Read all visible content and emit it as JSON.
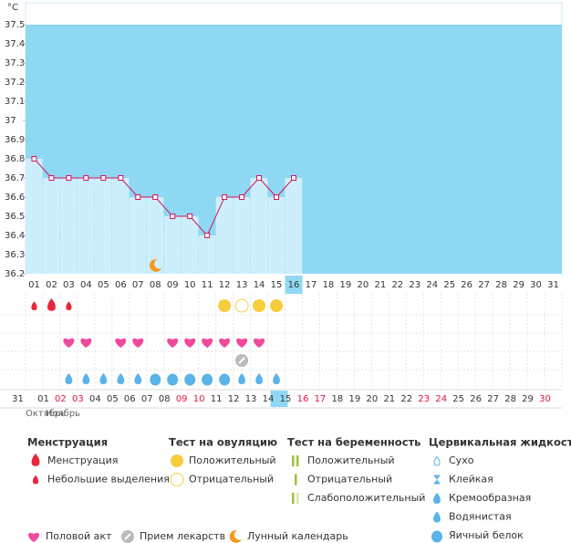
{
  "y_unit": "°C",
  "chart_data": {
    "type": "line",
    "categories": [
      "01",
      "02",
      "03",
      "04",
      "05",
      "06",
      "07",
      "08",
      "09",
      "10",
      "11",
      "12",
      "13",
      "14",
      "15",
      "16",
      "17",
      "18",
      "19",
      "20",
      "21",
      "22",
      "23",
      "24",
      "25",
      "26",
      "27",
      "28",
      "29",
      "30",
      "31"
    ],
    "values": [
      36.8,
      36.7,
      36.7,
      36.7,
      36.7,
      36.7,
      36.6,
      36.6,
      36.5,
      36.5,
      36.4,
      36.6,
      36.6,
      36.7,
      36.6,
      36.7,
      null,
      null,
      null,
      null,
      null,
      null,
      null,
      null,
      null,
      null,
      null,
      null,
      null,
      null,
      null
    ],
    "color": "#d2145a",
    "ylim": [
      36.2,
      37.6
    ],
    "yticks": [
      36.2,
      36.3,
      36.4,
      36.5,
      36.6,
      36.7,
      36.8,
      36.9,
      37,
      37.1,
      37.2,
      37.3,
      37.4,
      37.5
    ],
    "selected": 15
  },
  "dates": [
    "31",
    "01",
    "02",
    "03",
    "04",
    "05",
    "06",
    "07",
    "08",
    "09",
    "10",
    "11",
    "12",
    "13",
    "14",
    "15",
    "16",
    "17",
    "18",
    "19",
    "20",
    "21",
    "22",
    "23",
    "24",
    "25",
    "26",
    "27",
    "28",
    "29",
    "30"
  ],
  "weekend": [
    false,
    false,
    true,
    true,
    false,
    false,
    false,
    false,
    false,
    true,
    true,
    false,
    false,
    false,
    false,
    false,
    true,
    true,
    false,
    false,
    false,
    false,
    false,
    true,
    true,
    false,
    false,
    false,
    false,
    false,
    true
  ],
  "weekend_color": "#e0143c",
  "months": [
    "Октябрь",
    "Ноябрь"
  ],
  "legend": [
    {
      "title": "Менструация",
      "items": [
        {
          "label": "Менструация",
          "days": [
            2
          ]
        },
        {
          "label": "Небольшие выделения",
          "days": [
            1,
            3
          ]
        }
      ]
    },
    {
      "title": "Тест на овуляцию",
      "items": [
        {
          "label": "Положительный",
          "days": [
            12,
            14,
            15
          ]
        },
        {
          "label": "Отрицательный",
          "days": [
            13
          ]
        }
      ]
    },
    {
      "title": "Тест на беременность",
      "items": [
        {
          "label": "Положительный",
          "days": []
        },
        {
          "label": "Отрицательный",
          "days": []
        },
        {
          "label": "Слабоположительный",
          "days": []
        }
      ]
    },
    {
      "title": "Цервикальная жидкость",
      "items": [
        {
          "label": "Сухо",
          "days": []
        },
        {
          "label": "Клейкая",
          "days": []
        },
        {
          "label": "Кремообразная",
          "days": []
        },
        {
          "label": "Водянистая",
          "days": [
            3,
            4,
            5,
            6,
            7,
            13,
            14,
            15
          ]
        },
        {
          "label": "Яичный белок",
          "days": [
            8,
            9,
            10,
            11,
            12
          ]
        }
      ]
    }
  ],
  "other": [
    {
      "label": "Половой акт",
      "days": [
        3,
        4,
        6,
        7,
        9,
        10,
        11,
        12,
        13,
        14
      ]
    },
    {
      "label": "Прием лекарств",
      "days": [
        13
      ]
    },
    {
      "label": "Лунный календарь",
      "days": [
        8
      ]
    }
  ]
}
